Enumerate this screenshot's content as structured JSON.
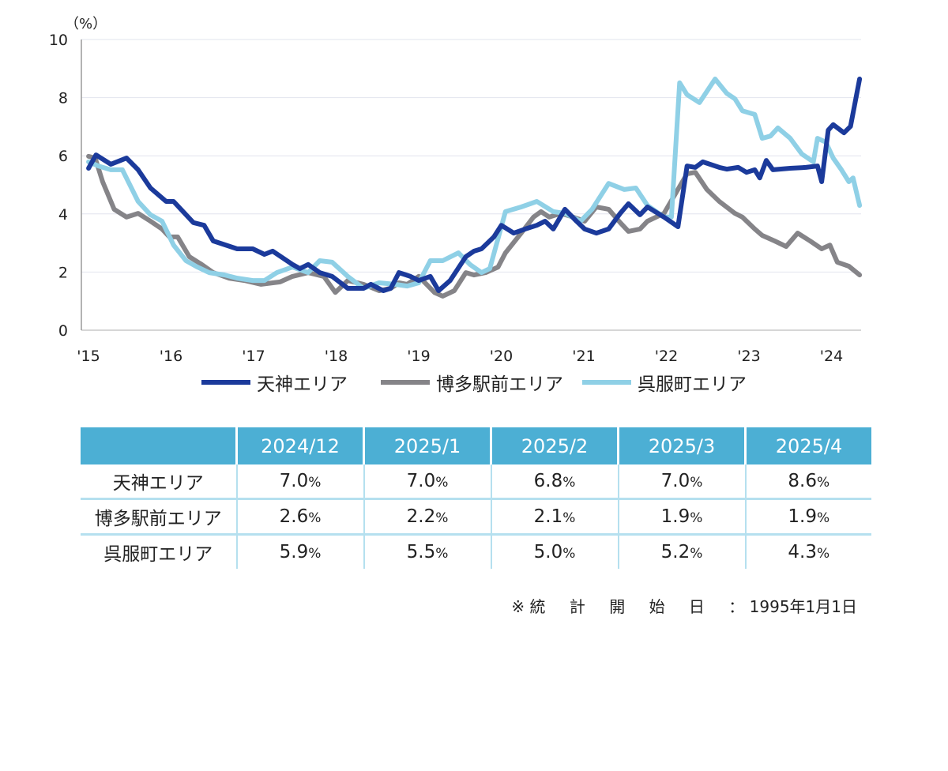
{
  "chart_data": {
    "type": "line",
    "y_unit_label": "（%）",
    "ylim": [
      0,
      10
    ],
    "yticks": [
      "0",
      "2",
      "4",
      "6",
      "8",
      "10"
    ],
    "x_range_years_since_2015": [
      0,
      9.4
    ],
    "xticks": [
      "'15",
      "'16",
      "'17",
      "'18",
      "'19",
      "'20",
      "'21",
      "'22",
      "'23",
      "'24"
    ],
    "grid": true,
    "legend_position": "bottom",
    "series": [
      {
        "name": "天神エリア",
        "color": "#1b3a9b",
        "x": [
          0.02,
          0.11,
          0.29,
          0.48,
          0.62,
          0.77,
          0.96,
          1.05,
          1.29,
          1.42,
          1.53,
          1.82,
          2.01,
          2.15,
          2.25,
          2.49,
          2.58,
          2.68,
          2.82,
          2.97,
          3.16,
          3.35,
          3.44,
          3.59,
          3.68,
          3.78,
          3.92,
          4.02,
          4.16,
          4.26,
          4.4,
          4.59,
          4.69,
          4.78,
          4.93,
          5.02,
          5.17,
          5.31,
          5.45,
          5.55,
          5.65,
          5.79,
          5.93,
          6.03,
          6.17,
          6.32,
          6.46,
          6.56,
          6.7,
          6.79,
          6.99,
          7.16,
          7.27,
          7.37,
          7.46,
          7.66,
          7.75,
          7.89,
          7.99,
          8.09,
          8.15,
          8.23,
          8.31,
          8.52,
          8.71,
          8.85,
          8.9,
          8.98,
          9.04,
          9.17,
          9.25,
          9.36
        ],
        "y": [
          5.57,
          6.03,
          5.71,
          5.92,
          5.52,
          4.89,
          4.43,
          4.43,
          3.7,
          3.61,
          3.07,
          2.8,
          2.8,
          2.61,
          2.72,
          2.26,
          2.12,
          2.26,
          1.98,
          1.85,
          1.44,
          1.44,
          1.58,
          1.36,
          1.44,
          1.98,
          1.85,
          1.71,
          1.85,
          1.36,
          1.71,
          2.53,
          2.72,
          2.8,
          3.21,
          3.61,
          3.34,
          3.48,
          3.61,
          3.75,
          3.48,
          4.16,
          3.75,
          3.48,
          3.34,
          3.48,
          4.02,
          4.35,
          3.97,
          4.24,
          3.89,
          3.56,
          5.65,
          5.6,
          5.79,
          5.6,
          5.54,
          5.6,
          5.43,
          5.52,
          5.24,
          5.84,
          5.52,
          5.57,
          5.6,
          5.65,
          5.11,
          6.88,
          7.07,
          6.79,
          7.01,
          8.64
        ]
      },
      {
        "name": "博多駅前エリア",
        "color": "#858488",
        "x": [
          0.02,
          0.1,
          0.19,
          0.33,
          0.48,
          0.62,
          0.77,
          0.91,
          1.0,
          1.1,
          1.24,
          1.39,
          1.53,
          1.72,
          1.91,
          2.11,
          2.34,
          2.49,
          2.68,
          2.87,
          3.01,
          3.16,
          3.35,
          3.54,
          3.68,
          3.78,
          3.88,
          4.02,
          4.21,
          4.31,
          4.45,
          4.59,
          4.69,
          4.83,
          4.98,
          5.07,
          5.26,
          5.41,
          5.5,
          5.6,
          5.74,
          5.89,
          6.03,
          6.17,
          6.32,
          6.46,
          6.56,
          6.7,
          6.79,
          6.99,
          7.13,
          7.27,
          7.37,
          7.51,
          7.66,
          7.85,
          7.94,
          8.09,
          8.18,
          8.33,
          8.47,
          8.61,
          8.76,
          8.9,
          9.0,
          9.09,
          9.23,
          9.36
        ],
        "y": [
          5.98,
          5.92,
          5.11,
          4.16,
          3.89,
          4.02,
          3.75,
          3.48,
          3.21,
          3.21,
          2.53,
          2.26,
          1.98,
          1.79,
          1.71,
          1.58,
          1.66,
          1.85,
          1.98,
          1.85,
          1.3,
          1.71,
          1.58,
          1.36,
          1.44,
          1.63,
          1.58,
          1.85,
          1.3,
          1.17,
          1.36,
          1.98,
          1.9,
          1.98,
          2.17,
          2.66,
          3.34,
          3.89,
          4.08,
          3.89,
          4.02,
          3.89,
          3.75,
          4.24,
          4.16,
          3.7,
          3.4,
          3.48,
          3.75,
          4.02,
          4.7,
          5.38,
          5.43,
          4.84,
          4.43,
          4.02,
          3.89,
          3.48,
          3.26,
          3.07,
          2.88,
          3.34,
          3.07,
          2.8,
          2.93,
          2.34,
          2.2,
          1.9
        ]
      },
      {
        "name": "呉服町エリア",
        "color": "#8fd0e6",
        "x": [
          0.02,
          0.14,
          0.29,
          0.43,
          0.62,
          0.77,
          0.91,
          1.05,
          1.2,
          1.34,
          1.48,
          1.67,
          1.82,
          2.01,
          2.15,
          2.3,
          2.49,
          2.68,
          2.82,
          2.97,
          3.16,
          3.35,
          3.54,
          3.73,
          3.88,
          4.02,
          4.16,
          4.31,
          4.5,
          4.64,
          4.78,
          4.88,
          5.07,
          5.26,
          5.45,
          5.65,
          5.79,
          5.98,
          6.12,
          6.32,
          6.51,
          6.65,
          6.79,
          6.99,
          7.08,
          7.18,
          7.27,
          7.42,
          7.61,
          7.75,
          7.85,
          7.94,
          8.09,
          8.18,
          8.28,
          8.37,
          8.52,
          8.66,
          8.8,
          8.85,
          8.95,
          9.04,
          9.14,
          9.23,
          9.28,
          9.36
        ],
        "y": [
          5.79,
          5.65,
          5.52,
          5.52,
          4.43,
          3.97,
          3.75,
          2.93,
          2.39,
          2.17,
          1.98,
          1.9,
          1.79,
          1.71,
          1.71,
          1.98,
          2.17,
          1.98,
          2.39,
          2.34,
          1.85,
          1.44,
          1.63,
          1.58,
          1.52,
          1.63,
          2.39,
          2.39,
          2.66,
          2.26,
          1.98,
          2.12,
          4.08,
          4.24,
          4.43,
          4.08,
          4.02,
          3.75,
          4.16,
          5.05,
          4.84,
          4.89,
          4.29,
          3.89,
          3.89,
          8.51,
          8.1,
          7.83,
          8.64,
          8.15,
          7.96,
          7.55,
          7.42,
          6.6,
          6.68,
          6.96,
          6.6,
          6.06,
          5.79,
          6.6,
          6.47,
          5.92,
          5.52,
          5.11,
          5.24,
          4.29
        ]
      }
    ]
  },
  "table": {
    "headers": [
      "",
      "2024/12",
      "2025/1",
      "2025/2",
      "2025/3",
      "2025/4"
    ],
    "percent_sign": "%",
    "rows": [
      {
        "area": "天神エリア",
        "values": [
          "7.0",
          "7.0",
          "6.8",
          "7.0",
          "8.6"
        ]
      },
      {
        "area": "博多駅前エリア",
        "values": [
          "2.6",
          "2.2",
          "2.1",
          "1.9",
          "1.9"
        ]
      },
      {
        "area": "呉服町エリア",
        "values": [
          "5.9",
          "5.5",
          "5.0",
          "5.2",
          "4.3"
        ]
      }
    ]
  },
  "note": {
    "mark": "※",
    "label_chars": [
      "統",
      "計",
      "開",
      "始",
      "日"
    ],
    "sep": "：",
    "date": "1995年1月1日"
  }
}
